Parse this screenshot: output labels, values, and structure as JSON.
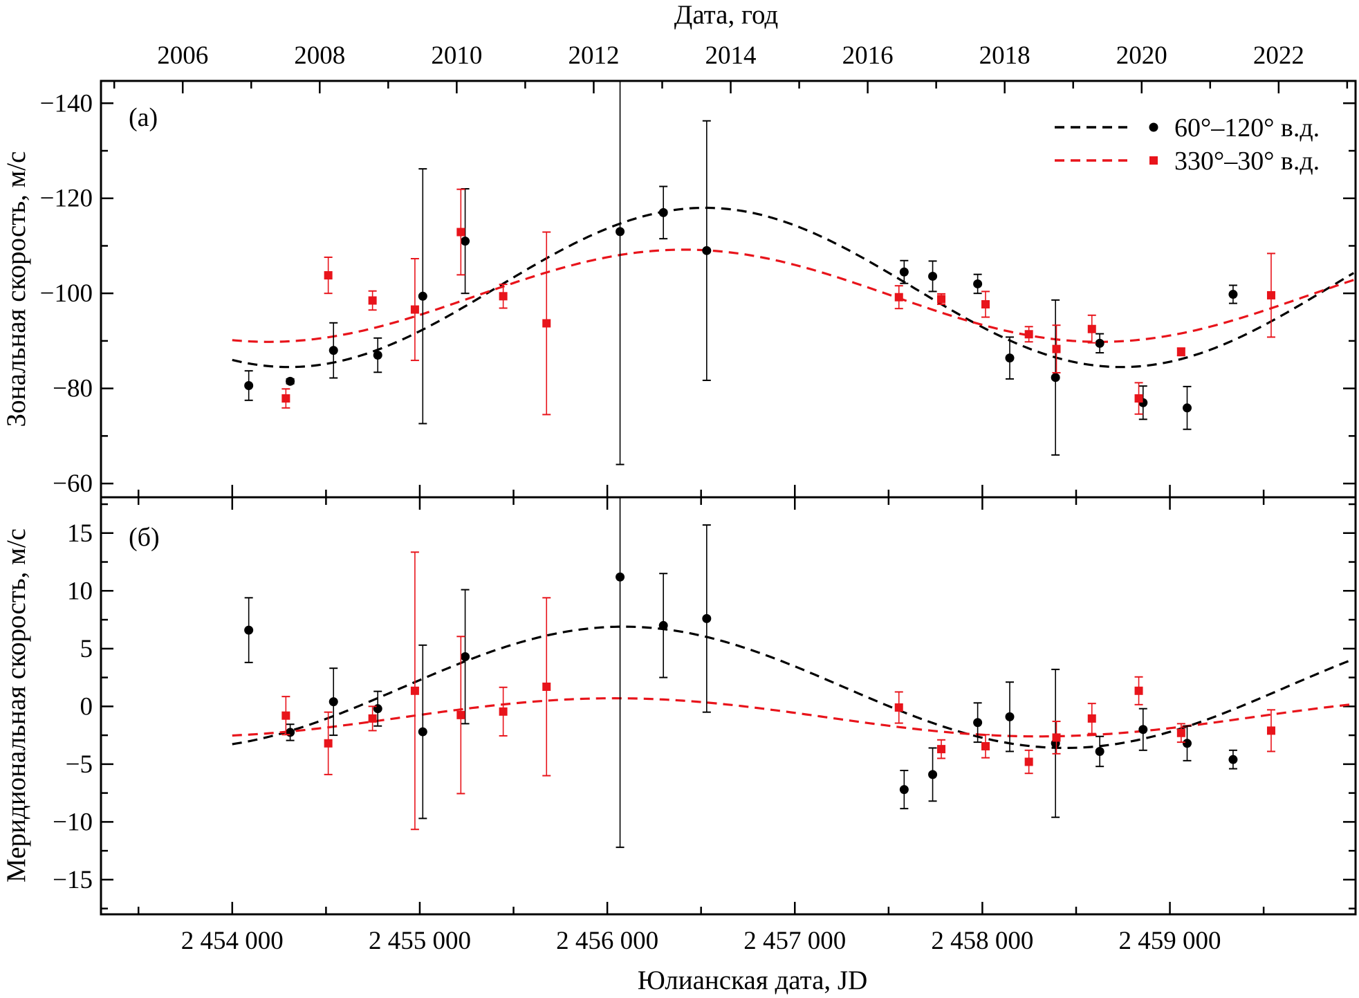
{
  "chart_data": {
    "type": "scatter",
    "top_axis": {
      "title": "Дата, год",
      "tick_labels": [
        "2006",
        "2008",
        "2010",
        "2012",
        "2014",
        "2016",
        "2018",
        "2020",
        "2022"
      ],
      "years": [
        2006,
        2008,
        2010,
        2012,
        2014,
        2016,
        2018,
        2020,
        2022
      ]
    },
    "bottom_axis": {
      "title": "Юлианская дата, JD",
      "tick_labels": [
        "2 454 000",
        "2 455 000",
        "2 456 000",
        "2 457 000",
        "2 458 000",
        "2 459 000"
      ],
      "ticks": [
        2454000,
        2455000,
        2456000,
        2457000,
        2458000,
        2459000
      ],
      "xlim": [
        2453300,
        2459990
      ]
    },
    "legend": {
      "placement": "top-right",
      "entries": [
        "60°–120° в.д.",
        "330°–30° в.д."
      ]
    },
    "colors": {
      "series_60_120": "#000000",
      "series_330_30": "#e8141b"
    },
    "panels": [
      {
        "label": "(а)",
        "ylabel": "Зональная скорость, м/с",
        "ylim": [
          -144.7,
          -57.1
        ],
        "y_inverted": true,
        "yticks": [
          -140,
          -120,
          -100,
          -80,
          -60
        ],
        "ytick_labels": [
          "−140",
          "−120",
          "−100",
          "−80",
          "−60"
        ],
        "series": [
          {
            "name": "60°–120° в.д.",
            "marker": "circle",
            "x": [
              2454088,
              2454309,
              2454540,
              2454776,
              2455016,
              2455242,
              2456068,
              2456299,
              2456530,
              2457583,
              2457735,
              2457975,
              2458146,
              2458390,
              2458626,
              2458857,
              2459092,
              2459337
            ],
            "y": [
              -80.6,
              -81.5,
              -88,
              -87,
              -99.4,
              -111,
              -113,
              -117,
              -109,
              -104.5,
              -103.6,
              -102,
              -86.4,
              -82.3,
              -89.5,
              -77,
              -75.9,
              -99.8
            ],
            "err": [
              3.1,
              0.5,
              5.8,
              3.6,
              26.8,
              11,
              49,
              5.5,
              27.3,
              2.4,
              3.2,
              2,
              4.4,
              16.3,
              2,
              3.5,
              4.5,
              1.9
            ],
            "fit": {
              "mean": -101.25,
              "amplitude": 16.75,
              "period_days": 4440,
              "peak_jd": 2458741
            }
          },
          {
            "name": "330°–30° в.д.",
            "marker": "square",
            "x": [
              2454286,
              2454512,
              2454748,
              2454974,
              2455219,
              2455445,
              2455676,
              2457555,
              2457781,
              2458017,
              2458248,
              2458395,
              2458584,
              2458834,
              2459060,
              2459540
            ],
            "y": [
              -77.9,
              -103.8,
              -98.5,
              -96.6,
              -112.9,
              -99.4,
              -93.7,
              -99.2,
              -98.8,
              -97.7,
              -91.4,
              -88.3,
              -92.5,
              -77.9,
              -87.7,
              -99.6
            ],
            "err": [
              2,
              3.8,
              2,
              10.7,
              9,
              2.5,
              19.2,
              2.4,
              1.1,
              2.7,
              1.6,
              5,
              2.9,
              3.3,
              0.8,
              8.8
            ],
            "fit": {
              "mean": -99.5,
              "amplitude": 9.7,
              "period_days": 4432,
              "peak_jd": 2458626
            }
          }
        ]
      },
      {
        "label": "(б)",
        "ylabel": "Меридиональная скорость, м/с",
        "ylim": [
          -18.0,
          18.1
        ],
        "y_inverted": false,
        "yticks": [
          15,
          10,
          5,
          0,
          -5,
          -10,
          -15
        ],
        "ytick_labels": [
          "15",
          "10",
          "5",
          "0",
          "−5",
          "−10",
          "−15"
        ],
        "series": [
          {
            "name": "60°–120° в.д.",
            "marker": "circle",
            "x": [
              2454088,
              2454309,
              2454540,
              2454776,
              2455016,
              2455242,
              2456068,
              2456299,
              2456530,
              2457583,
              2457735,
              2457975,
              2458146,
              2458390,
              2458626,
              2458857,
              2459092,
              2459337
            ],
            "y": [
              6.6,
              -2.25,
              0.4,
              -0.2,
              -2.2,
              4.3,
              11.2,
              7.0,
              7.6,
              -7.2,
              -5.9,
              -1.4,
              -0.9,
              -3.2,
              -3.9,
              -2.0,
              -3.2,
              -4.6
            ],
            "err": [
              2.8,
              0.7,
              2.9,
              1.5,
              7.5,
              5.8,
              23.4,
              4.5,
              8.1,
              1.65,
              2.3,
              1.7,
              3,
              6.4,
              1.3,
              1.8,
              1.5,
              0.8
            ],
            "fit": {
              "mean": 1.65,
              "amplitude": 5.25,
              "period_days": 4708,
              "peak_jd": 2456087
            }
          },
          {
            "name": "330°–30° в.д.",
            "marker": "square",
            "x": [
              2454286,
              2454512,
              2454748,
              2454974,
              2455219,
              2455445,
              2455676,
              2457555,
              2457781,
              2458017,
              2458248,
              2458395,
              2458584,
              2458834,
              2459060,
              2459540
            ],
            "y": [
              -0.8,
              -3.2,
              -1.05,
              1.35,
              -0.75,
              -0.45,
              1.7,
              -0.1,
              -3.7,
              -3.45,
              -4.8,
              -2.7,
              -1.05,
              1.35,
              -2.3,
              -2.1
            ],
            "err": [
              1.65,
              2.7,
              1.05,
              12,
              6.8,
              2.1,
              7.7,
              1.35,
              0.8,
              1,
              1,
              1.4,
              1.3,
              1.2,
              0.8,
              1.8
            ],
            "fit": {
              "mean": -0.95,
              "amplitude": 1.65,
              "period_days": 4526,
              "peak_jd": 2456040
            }
          }
        ]
      }
    ]
  }
}
